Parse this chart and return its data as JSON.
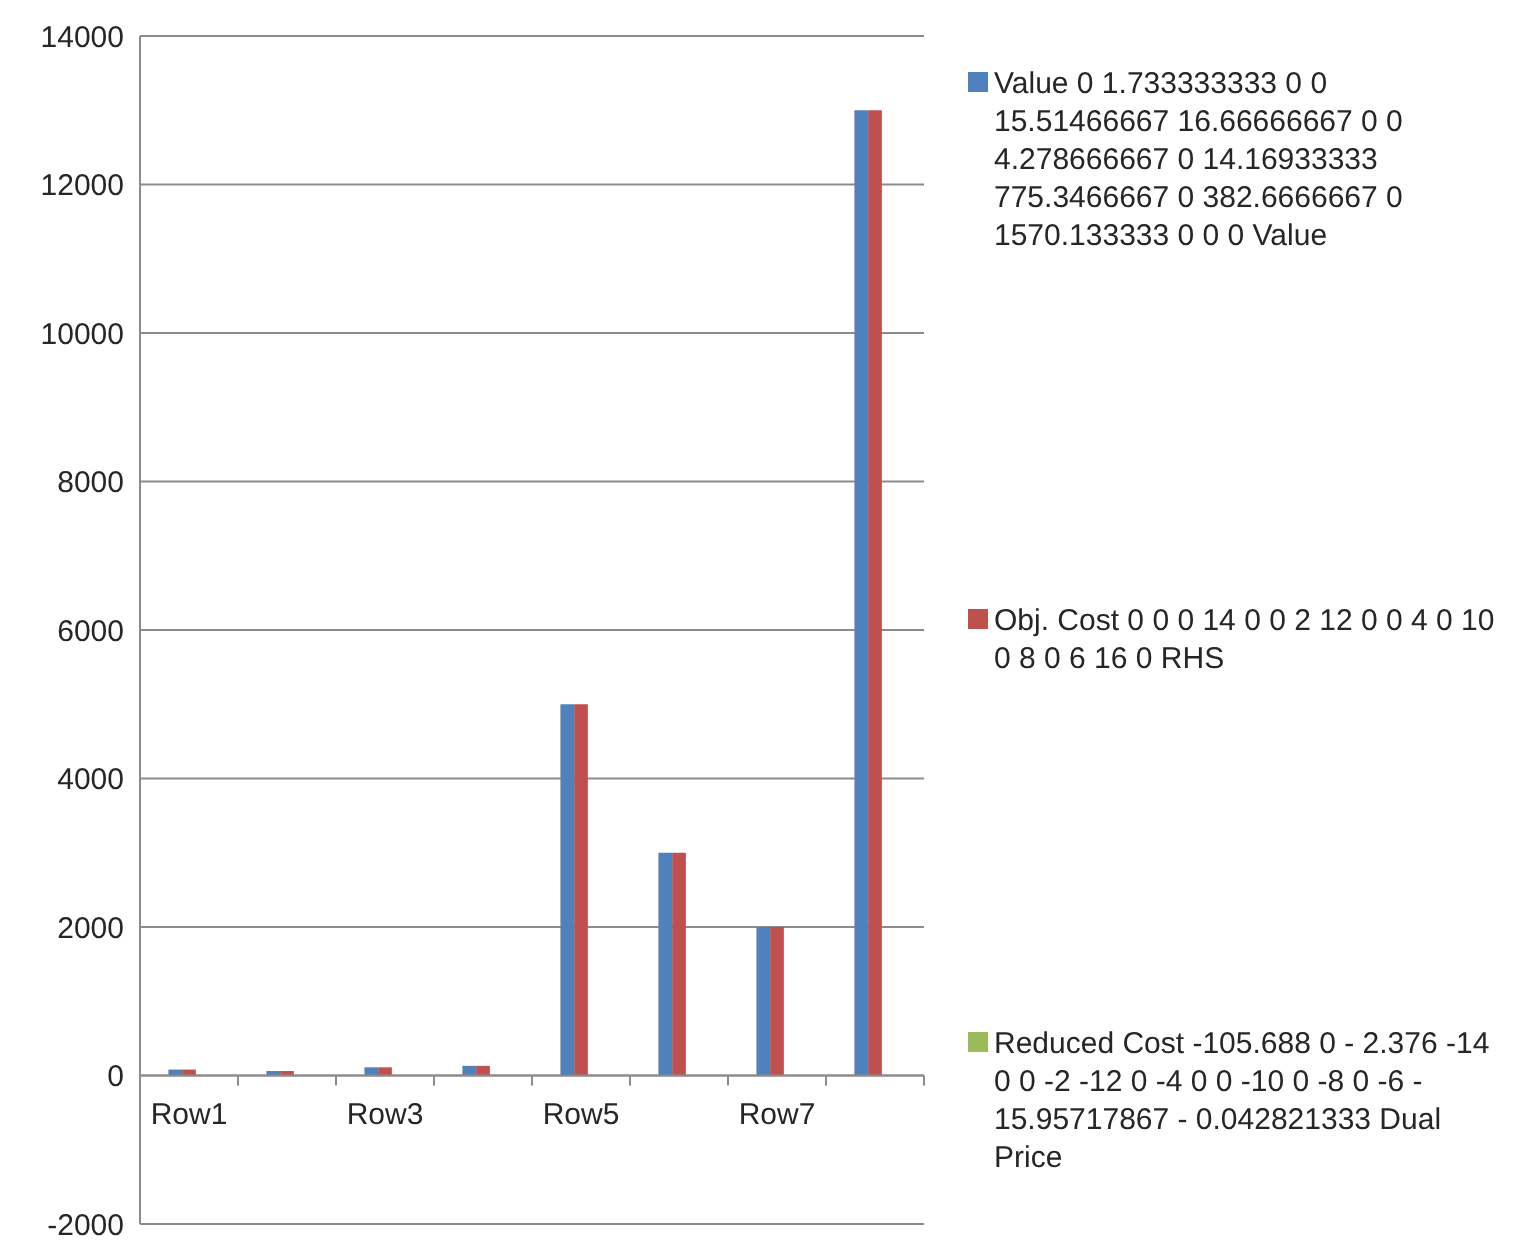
{
  "chart_data": {
    "type": "bar",
    "categories": [
      "Row1",
      null,
      "Row3",
      null,
      "Row5",
      null,
      "Row7",
      null
    ],
    "series": [
      {
        "name": "Value 0 1.733333333 0 0 15.51466667 16.66666667 0 0 4.278666667 0 14.16933333 775.3466667 0 382.6666667 0 1570.133333 0 0 0 Value",
        "color": "#4f81bd",
        "values": [
          80,
          60,
          110,
          130,
          5000,
          3000,
          2000,
          13000
        ]
      },
      {
        "name": "Obj. Cost 0 0 0 14 0 0 2 12 0 0 4 0 10 0 8 0 6 16 0 RHS",
        "color": "#c0504d",
        "values": [
          80,
          60,
          110,
          130,
          5000,
          3000,
          2000,
          13000
        ]
      },
      {
        "name": "Reduced Cost -105.688 0 - 2.376 -14 0 0 -2 -12 0 -4 0 0 -10 0 -8 0 -6 - 15.95717867 - 0.042821333 Dual Price",
        "color": "#9bbb59",
        "values": [
          0,
          0,
          0,
          0,
          0,
          0,
          0,
          0
        ]
      }
    ],
    "ylim": [
      -2000,
      14000
    ],
    "yticks": [
      -2000,
      0,
      2000,
      4000,
      6000,
      8000,
      10000,
      12000,
      14000
    ],
    "grid": "y",
    "legend": "right"
  }
}
